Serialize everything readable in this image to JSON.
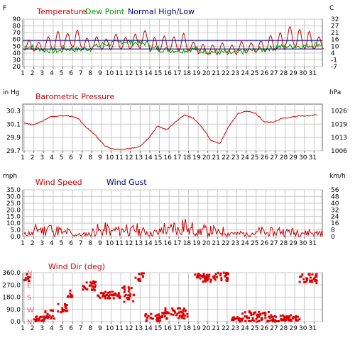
{
  "chart_data": [
    {
      "type": "line",
      "title": "",
      "legend": [
        "Temperature",
        "Dew Point",
        "Normal High/Low"
      ],
      "legend_colors": [
        "#cc0000",
        "#009900",
        "#000080"
      ],
      "left_unit": "F",
      "right_unit": "C",
      "y_ticks": [
        "20",
        "30",
        "40",
        "50",
        "60",
        "70",
        "80",
        "90"
      ],
      "right_ticks": [
        "-7",
        "-1",
        "4",
        "10",
        "16",
        "21",
        "27",
        "32"
      ],
      "ylim": [
        20,
        90
      ],
      "x_ticks": [
        "1",
        "2",
        "3",
        "4",
        "5",
        "6",
        "7",
        "8",
        "9",
        "10",
        "11",
        "12",
        "13",
        "14",
        "15",
        "16",
        "17",
        "18",
        "19",
        "20",
        "21",
        "22",
        "23",
        "24",
        "25",
        "26",
        "27",
        "28",
        "29",
        "30",
        "31"
      ],
      "grid": true,
      "series": [
        {
          "name": "Temperature",
          "color": "#cc0000",
          "daily_high": [
            59,
            56,
            64,
            72,
            69,
            74,
            62,
            64,
            61,
            68,
            63,
            68,
            73,
            63,
            65,
            64,
            69,
            56,
            53,
            52,
            55,
            52,
            57,
            55,
            58,
            66,
            70,
            79,
            75,
            72,
            64
          ],
          "daily_low": [
            44,
            43,
            45,
            45,
            50,
            48,
            45,
            47,
            45,
            47,
            46,
            47,
            51,
            42,
            44,
            43,
            43,
            43,
            39,
            38,
            40,
            38,
            40,
            41,
            42,
            44,
            45,
            52,
            48,
            46,
            46
          ]
        },
        {
          "name": "Dew Point",
          "color": "#009900",
          "values": [
            49,
            46,
            44,
            43,
            46,
            45,
            46,
            50,
            53,
            55,
            57,
            55,
            54,
            47,
            45,
            44,
            44,
            46,
            43,
            42,
            41,
            40,
            42,
            44,
            45,
            47,
            49,
            50,
            50,
            51,
            53
          ]
        },
        {
          "name": "Normal High",
          "color": "#000080",
          "values": [
            58
          ]
        },
        {
          "name": "Normal Low",
          "color": "#000080",
          "values": [
            46
          ]
        }
      ]
    },
    {
      "type": "line",
      "title": "Barometric Pressure",
      "left_unit": "in Hg",
      "right_unit": "hPa",
      "y_ticks": [
        "29.7",
        "29.9",
        "30.1",
        "30.3"
      ],
      "right_ticks": [
        "1006",
        "1013",
        "1019",
        "1026"
      ],
      "ylim": [
        29.7,
        30.4
      ],
      "grid": true,
      "series": [
        {
          "name": "Barometric Pressure",
          "color": "#cc0000",
          "values": [
            30.06,
            30.03,
            30.08,
            30.14,
            30.15,
            30.15,
            30.12,
            30.0,
            29.9,
            29.77,
            29.72,
            29.72,
            29.73,
            29.76,
            29.87,
            30.02,
            29.97,
            30.07,
            30.16,
            30.12,
            30.0,
            29.83,
            29.8,
            30.02,
            30.18,
            30.21,
            30.18,
            30.07,
            30.07,
            30.12,
            30.13,
            30.15,
            30.15,
            30.17
          ]
        }
      ]
    },
    {
      "type": "line",
      "title": "",
      "legend": [
        "Wind Speed",
        "Wind Gust"
      ],
      "legend_colors": [
        "#cc0000",
        "#000080"
      ],
      "left_unit": "mph",
      "right_unit": "km/h",
      "y_ticks": [
        "0.0",
        "5.0",
        "10.0",
        "15.0",
        "20.0",
        "25.0",
        "30.0",
        "35.0"
      ],
      "right_ticks": [
        "0",
        "8",
        "16",
        "24",
        "32",
        "40",
        "48",
        "56"
      ],
      "ylim": [
        0,
        35
      ],
      "grid": true,
      "series": [
        {
          "name": "Wind Speed",
          "color": "#cc0000",
          "daily_peak": [
            5,
            12,
            14,
            9,
            7,
            3,
            4,
            10,
            11,
            10,
            13,
            11,
            8,
            6,
            12,
            14,
            19,
            12,
            10,
            9,
            8,
            6,
            5,
            6,
            8,
            7,
            9,
            8,
            9,
            7,
            6
          ]
        }
      ]
    },
    {
      "type": "scatter",
      "title": "Wind Dir (deg)",
      "left_unit": "",
      "y_ticks": [
        "0.0",
        "90.0",
        "180.0",
        "270.0",
        "360.0"
      ],
      "right_ticks": [],
      "compass_labels": [
        "N",
        "W",
        "S",
        "E",
        "N"
      ],
      "ylim": [
        0,
        360
      ],
      "grid": true,
      "series": [
        {
          "name": "Wind Dir (deg)",
          "color": "#dd0000",
          "clusters": [
            {
              "d0": 1.0,
              "d1": 1.6,
              "v0": 290,
              "v1": 350
            },
            {
              "d0": 2.0,
              "d1": 3.2,
              "v0": 0,
              "v1": 40
            },
            {
              "d0": 3.2,
              "d1": 4.2,
              "v0": 20,
              "v1": 90
            },
            {
              "d0": 4.5,
              "d1": 5.5,
              "v0": 60,
              "v1": 140
            },
            {
              "d0": 5.5,
              "d1": 6.0,
              "v0": 180,
              "v1": 230
            },
            {
              "d0": 7.0,
              "d1": 8.5,
              "v0": 230,
              "v1": 300
            },
            {
              "d0": 8.5,
              "d1": 11.0,
              "v0": 170,
              "v1": 220
            },
            {
              "d0": 11.0,
              "d1": 12.5,
              "v0": 140,
              "v1": 260
            },
            {
              "d0": 12.5,
              "d1": 13.4,
              "v0": 300,
              "v1": 360
            },
            {
              "d0": 13.5,
              "d1": 15.2,
              "v0": 0,
              "v1": 60
            },
            {
              "d0": 15.2,
              "d1": 18.0,
              "v0": 20,
              "v1": 100
            },
            {
              "d0": 18.5,
              "d1": 22.3,
              "v0": 290,
              "v1": 360
            },
            {
              "d0": 22.5,
              "d1": 23.5,
              "v0": 0,
              "v1": 40
            },
            {
              "d0": 23.5,
              "d1": 26.5,
              "v0": 0,
              "v1": 80
            },
            {
              "d0": 26.5,
              "d1": 29.5,
              "v0": 0,
              "v1": 50
            },
            {
              "d0": 29.5,
              "d1": 31.3,
              "v0": 280,
              "v1": 350
            }
          ]
        }
      ]
    }
  ]
}
